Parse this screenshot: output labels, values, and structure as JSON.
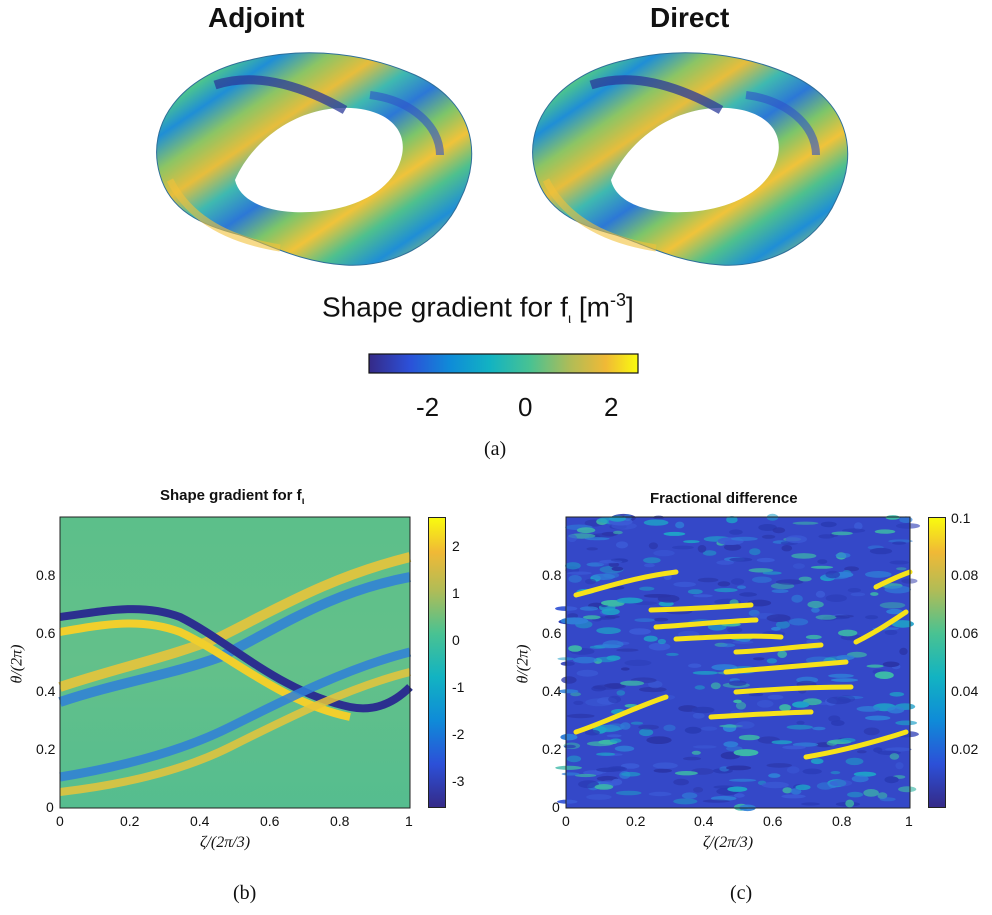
{
  "panel_a": {
    "left_title": "Adjoint",
    "right_title": "Direct",
    "heading_main": "Shape gradient for f",
    "heading_sub": "ι",
    "heading_unit_open": "[m",
    "heading_unit_exp": "-3",
    "heading_unit_close": "]",
    "colorbar_ticks": [
      "-2",
      "0",
      "2"
    ],
    "caption": "(a)"
  },
  "panel_b": {
    "title_main": "Shape gradient for f",
    "title_sub": "ι",
    "xlabel": "ζ/(2π/3)",
    "ylabel": "θ/(2π)",
    "xticks": [
      "0",
      "0.2",
      "0.4",
      "0.6",
      "0.8",
      "1"
    ],
    "yticks": [
      "0",
      "0.2",
      "0.4",
      "0.6",
      "0.8"
    ],
    "colorbar_ticks": [
      "2",
      "1",
      "0",
      "-1",
      "-2",
      "-3"
    ],
    "caption": "(b)"
  },
  "panel_c": {
    "title": "Fractional difference",
    "xlabel": "ζ/(2π/3)",
    "ylabel": "θ/(2π)",
    "xticks": [
      "0",
      "0.2",
      "0.4",
      "0.6",
      "0.8",
      "1"
    ],
    "yticks": [
      "0",
      "0.2",
      "0.4",
      "0.6",
      "0.8"
    ],
    "colorbar_ticks": [
      "0.1",
      "0.08",
      "0.06",
      "0.04",
      "0.02"
    ],
    "caption": "(c)"
  },
  "chart_data": [
    {
      "type": "heatmap",
      "title": "Shape gradient for f ι",
      "xlabel": "ζ/(2π/3)",
      "ylabel": "θ/(2π)",
      "xlim": [
        0,
        1
      ],
      "ylim": [
        0,
        1
      ],
      "clim": [
        -3.7,
        2.4
      ],
      "colormap": "parula",
      "features": [
        {
          "kind": "negative band",
          "path_x": [
            0.0,
            0.25,
            0.45,
            0.75,
            1.0
          ],
          "path_y": [
            0.52,
            0.62,
            0.5,
            0.38,
            0.5
          ],
          "min": -3.7
        },
        {
          "kind": "positive band",
          "path_x": [
            0.0,
            0.25,
            0.5,
            0.75,
            1.0
          ],
          "path_y": [
            0.47,
            0.58,
            0.45,
            0.42,
            0.55
          ],
          "max": 2.4
        }
      ]
    },
    {
      "type": "heatmap",
      "title": "Fractional difference",
      "xlabel": "ζ/(2π/3)",
      "ylabel": "θ/(2π)",
      "xlim": [
        0,
        1
      ],
      "ylim": [
        0,
        1
      ],
      "clim": [
        0,
        0.1
      ],
      "colormap": "parula"
    }
  ],
  "colors": {
    "parula_low": "#352a87",
    "parula_mid_low": "#0f8bd8",
    "parula_mid": "#35b7a3",
    "parula_mid_high": "#a5be5f",
    "parula_high": "#f9fb0e"
  }
}
